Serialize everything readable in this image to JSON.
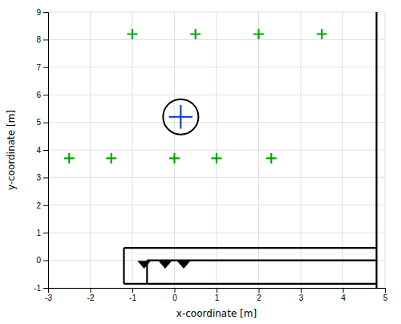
{
  "chart_data": {
    "type": "scatter",
    "xlabel": "x-coordinate [m]",
    "ylabel": "y-coordinate [m]",
    "xlim": [
      -3,
      5
    ],
    "ylim": [
      -1,
      9
    ],
    "xticks": [
      -3,
      -2,
      -1,
      0,
      1,
      2,
      3,
      4,
      5
    ],
    "yticks": [
      -1,
      0,
      1,
      2,
      3,
      4,
      5,
      6,
      7,
      8,
      9
    ],
    "grid": true,
    "series": [
      {
        "type": "scatter",
        "color": "#00aa00",
        "marker": "plus",
        "x": [
          -2.5,
          -1.5,
          0.0,
          1.0,
          2.3,
          -1.0,
          0.5,
          2.0,
          3.5
        ],
        "values": [
          3.7,
          3.7,
          3.7,
          3.7,
          3.7,
          8.2,
          8.2,
          8.2,
          8.2
        ]
      }
    ],
    "estimate": {
      "center": [
        0.15,
        5.2
      ],
      "radius": 0.42,
      "cross_arm": 0.28,
      "color": "#000000",
      "cross_color": "#0033cc"
    },
    "walls": {
      "color": "#000000",
      "segments": [
        [
          [
            4.8,
            -1
          ],
          [
            4.8,
            9
          ]
        ],
        [
          [
            -1.2,
            0.45
          ],
          [
            4.8,
            0.45
          ]
        ],
        [
          [
            -1.2,
            -0.85
          ],
          [
            -1.2,
            0.45
          ]
        ],
        [
          [
            -1.2,
            -0.85
          ],
          [
            -0.65,
            -0.85
          ]
        ],
        [
          [
            -0.65,
            -0.85
          ],
          [
            -0.65,
            0.0
          ]
        ],
        [
          [
            -0.65,
            0.0
          ],
          [
            4.8,
            0.0
          ]
        ],
        [
          [
            -0.65,
            -0.85
          ],
          [
            4.8,
            -0.85
          ]
        ]
      ]
    },
    "sensors": {
      "color": "#000000",
      "triangles": [
        [
          [
            -0.88,
            -0.02
          ],
          [
            -0.56,
            -0.02
          ],
          [
            -0.72,
            -0.3
          ]
        ],
        [
          [
            -0.38,
            -0.02
          ],
          [
            -0.06,
            -0.02
          ],
          [
            -0.22,
            -0.3
          ]
        ],
        [
          [
            0.06,
            -0.02
          ],
          [
            0.38,
            -0.02
          ],
          [
            0.22,
            -0.3
          ]
        ]
      ]
    }
  }
}
